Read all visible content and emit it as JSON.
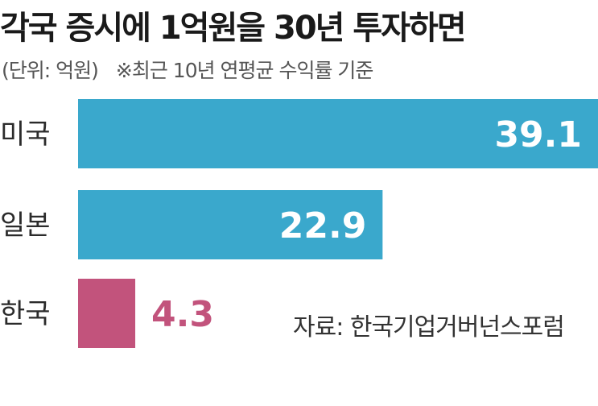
{
  "chart_data": {
    "type": "bar",
    "orientation": "horizontal",
    "title": "각국 증시에 1억원을 30년 투자하면",
    "subtitle_unit": "(단위: 억원)",
    "subtitle_note": "※최근 10년 연평균 수익률 기준",
    "categories": [
      "미국",
      "일본",
      "한국"
    ],
    "values": [
      39.1,
      22.9,
      4.3
    ],
    "value_labels": [
      "39.1",
      "22.9",
      "4.3"
    ],
    "colors": [
      "#3aa8cc",
      "#3aa8cc",
      "#c2537c"
    ],
    "source": "자료: 한국기업거버넌스포럼"
  }
}
